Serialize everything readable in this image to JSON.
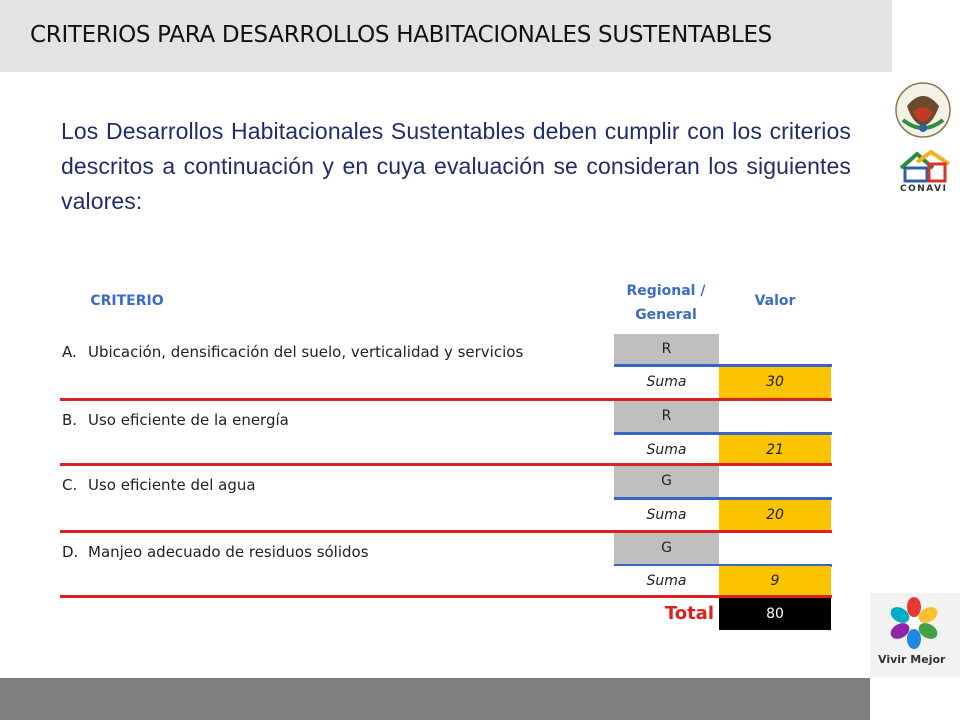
{
  "header": {
    "title": "CRITERIOS PARA DESARROLLOS HABITACIONALES SUSTENTABLES"
  },
  "logos": {
    "seal_text": "ESTADOS UNIDOS MEXICANOS",
    "conavi": "CONAVI",
    "vivir_mejor": "Vivir Mejor"
  },
  "intro": "Los Desarrollos Habitacionales Sustentables deben cumplir con los criterios descritos a continuación y en cuya evaluación se consideran los siguientes valores:",
  "table": {
    "headers": {
      "criterio": "CRITERIO",
      "regional_general": "Regional / General",
      "valor": "Valor"
    },
    "rows": [
      {
        "letter": "A.",
        "criterio": "Ubicación, densificación del suelo, verticalidad y servicios",
        "rg": "R",
        "valor": "",
        "suma_label": "Suma",
        "suma": "30"
      },
      {
        "letter": "B.",
        "criterio": "Uso eficiente de la energía",
        "rg": "R",
        "valor": "",
        "suma_label": "Suma",
        "suma": "21"
      },
      {
        "letter": "C.",
        "criterio": "Uso eficiente del agua",
        "rg": "G",
        "valor": "",
        "suma_label": "Suma",
        "suma": "20"
      },
      {
        "letter": "D.",
        "criterio": "Manjeo adecuado de residuos sólidos",
        "rg": "G",
        "valor": "",
        "suma_label": "Suma",
        "suma": "9"
      }
    ],
    "total_label": "Total",
    "total_value": "80"
  },
  "colors": {
    "header_text": "#3c6cc4",
    "intro_text": "#1f2d6b",
    "suma_fill": "#fbc300",
    "rg_fill": "#bfbfbf",
    "divider_red": "#e0201f",
    "divider_blue": "#3b64c8"
  }
}
